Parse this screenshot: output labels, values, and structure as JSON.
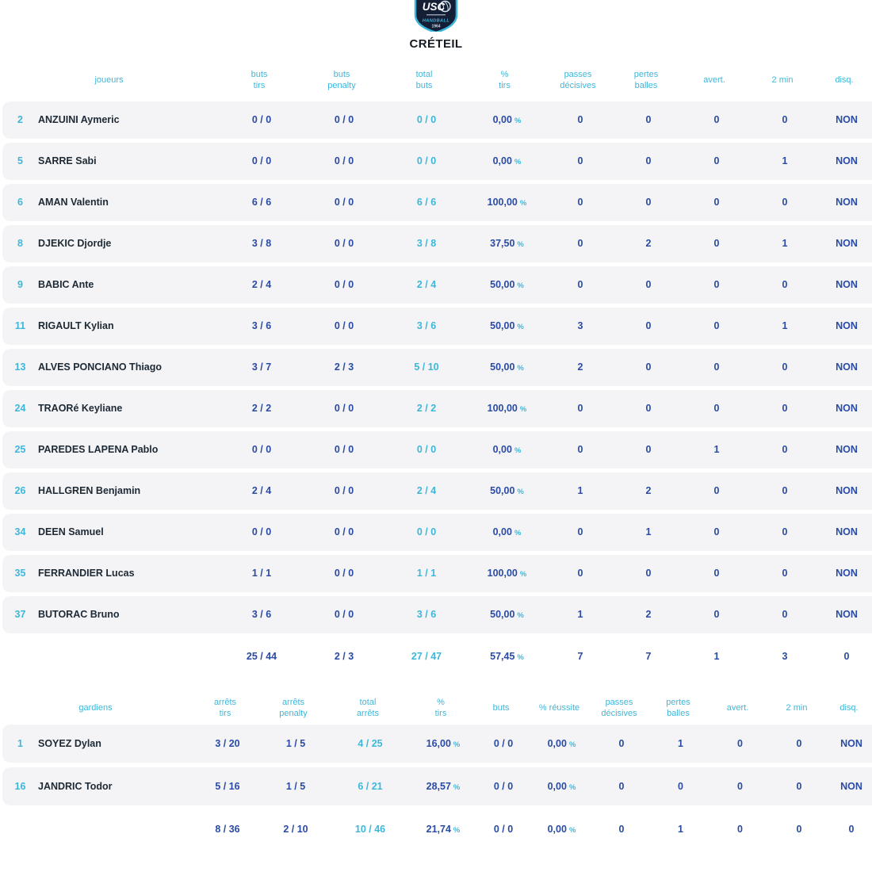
{
  "team": {
    "name": "CRÉTEIL",
    "logo": {
      "abbr": "USC",
      "sport": "HANDBALL",
      "year": "1964"
    }
  },
  "percent_sign": "%",
  "colors": {
    "accent_cyan": "#3db7d9",
    "value_blue": "#2a4ba4",
    "name_dark": "#1d2935",
    "row_bg": "#f4f4f6",
    "title_dark": "#161b22",
    "crest_navy": "#141f36"
  },
  "players_table": {
    "headers": [
      "joueurs",
      "buts\ntirs",
      "buts\npenalty",
      "total\nbuts",
      "%\ntirs",
      "passes\ndécisives",
      "pertes\nballes",
      "avert.",
      "2 min",
      "disq."
    ],
    "col_keys": [
      "buts_tirs",
      "buts_penalty",
      "total_buts",
      "pct_tirs",
      "passes_decisives",
      "pertes_balles",
      "avert",
      "two_min",
      "disq"
    ],
    "cyan_keys": [
      "total_buts"
    ],
    "rows": [
      {
        "num": "2",
        "name": "ANZUINI Aymeric",
        "buts_tirs": "0 / 0",
        "buts_penalty": "0 / 0",
        "total_buts": "0 / 0",
        "pct_tirs": "0,00",
        "passes_decisives": "0",
        "pertes_balles": "0",
        "avert": "0",
        "two_min": "0",
        "disq": "NON"
      },
      {
        "num": "5",
        "name": "SARRE Sabi",
        "buts_tirs": "0 / 0",
        "buts_penalty": "0 / 0",
        "total_buts": "0 / 0",
        "pct_tirs": "0,00",
        "passes_decisives": "0",
        "pertes_balles": "0",
        "avert": "0",
        "two_min": "1",
        "disq": "NON"
      },
      {
        "num": "6",
        "name": "AMAN Valentin",
        "buts_tirs": "6 / 6",
        "buts_penalty": "0 / 0",
        "total_buts": "6 / 6",
        "pct_tirs": "100,00",
        "passes_decisives": "0",
        "pertes_balles": "0",
        "avert": "0",
        "two_min": "0",
        "disq": "NON"
      },
      {
        "num": "8",
        "name": "DJEKIC Djordje",
        "buts_tirs": "3 / 8",
        "buts_penalty": "0 / 0",
        "total_buts": "3 / 8",
        "pct_tirs": "37,50",
        "passes_decisives": "0",
        "pertes_balles": "2",
        "avert": "0",
        "two_min": "1",
        "disq": "NON"
      },
      {
        "num": "9",
        "name": "BABIC Ante",
        "buts_tirs": "2 / 4",
        "buts_penalty": "0 / 0",
        "total_buts": "2 / 4",
        "pct_tirs": "50,00",
        "passes_decisives": "0",
        "pertes_balles": "0",
        "avert": "0",
        "two_min": "0",
        "disq": "NON"
      },
      {
        "num": "11",
        "name": "RIGAULT Kylian",
        "buts_tirs": "3 / 6",
        "buts_penalty": "0 / 0",
        "total_buts": "3 / 6",
        "pct_tirs": "50,00",
        "passes_decisives": "3",
        "pertes_balles": "0",
        "avert": "0",
        "two_min": "1",
        "disq": "NON"
      },
      {
        "num": "13",
        "name": "ALVES PONCIANO Thiago",
        "buts_tirs": "3 / 7",
        "buts_penalty": "2 / 3",
        "total_buts": "5 / 10",
        "pct_tirs": "50,00",
        "passes_decisives": "2",
        "pertes_balles": "0",
        "avert": "0",
        "two_min": "0",
        "disq": "NON"
      },
      {
        "num": "24",
        "name": "TRAORé Keyliane",
        "buts_tirs": "2 / 2",
        "buts_penalty": "0 / 0",
        "total_buts": "2 / 2",
        "pct_tirs": "100,00",
        "passes_decisives": "0",
        "pertes_balles": "0",
        "avert": "0",
        "two_min": "0",
        "disq": "NON"
      },
      {
        "num": "25",
        "name": "PAREDES LAPENA Pablo",
        "buts_tirs": "0 / 0",
        "buts_penalty": "0 / 0",
        "total_buts": "0 / 0",
        "pct_tirs": "0,00",
        "passes_decisives": "0",
        "pertes_balles": "0",
        "avert": "1",
        "two_min": "0",
        "disq": "NON"
      },
      {
        "num": "26",
        "name": "HALLGREN Benjamin",
        "buts_tirs": "2 / 4",
        "buts_penalty": "0 / 0",
        "total_buts": "2 / 4",
        "pct_tirs": "50,00",
        "passes_decisives": "1",
        "pertes_balles": "2",
        "avert": "0",
        "two_min": "0",
        "disq": "NON"
      },
      {
        "num": "34",
        "name": "DEEN Samuel",
        "buts_tirs": "0 / 0",
        "buts_penalty": "0 / 0",
        "total_buts": "0 / 0",
        "pct_tirs": "0,00",
        "passes_decisives": "0",
        "pertes_balles": "1",
        "avert": "0",
        "two_min": "0",
        "disq": "NON"
      },
      {
        "num": "35",
        "name": "FERRANDIER Lucas",
        "buts_tirs": "1 / 1",
        "buts_penalty": "0 / 0",
        "total_buts": "1 / 1",
        "pct_tirs": "100,00",
        "passes_decisives": "0",
        "pertes_balles": "0",
        "avert": "0",
        "two_min": "0",
        "disq": "NON"
      },
      {
        "num": "37",
        "name": "BUTORAC Bruno",
        "buts_tirs": "3 / 6",
        "buts_penalty": "0 / 0",
        "total_buts": "3 / 6",
        "pct_tirs": "50,00",
        "passes_decisives": "1",
        "pertes_balles": "2",
        "avert": "0",
        "two_min": "0",
        "disq": "NON"
      }
    ],
    "totals": {
      "buts_tirs": "25 / 44",
      "buts_penalty": "2 / 3",
      "total_buts": "27 / 47",
      "pct_tirs": "57,45",
      "passes_decisives": "7",
      "pertes_balles": "7",
      "avert": "1",
      "two_min": "3",
      "disq": "0"
    }
  },
  "keepers_table": {
    "headers": [
      "gardiens",
      "arrêts\ntirs",
      "arrêts\npenalty",
      "total\narrêts",
      "%\ntirs",
      "buts",
      "% réussite",
      "passes\ndécisives",
      "pertes\nballes",
      "avert.",
      "2 min",
      "disq."
    ],
    "col_keys": [
      "arrets_tirs",
      "arrets_penalty",
      "total_arrets",
      "pct_tirs",
      "buts",
      "pct_reussite",
      "passes_decisives",
      "pertes_balles",
      "avert",
      "two_min",
      "disq"
    ],
    "cyan_keys": [
      "total_arrets"
    ],
    "rows": [
      {
        "num": "1",
        "name": "SOYEZ Dylan",
        "arrets_tirs": "3 / 20",
        "arrets_penalty": "1 / 5",
        "total_arrets": "4 / 25",
        "pct_tirs": "16,00",
        "buts": "0 / 0",
        "pct_reussite": "0,00",
        "passes_decisives": "0",
        "pertes_balles": "1",
        "avert": "0",
        "two_min": "0",
        "disq": "NON"
      },
      {
        "num": "16",
        "name": "JANDRIC Todor",
        "arrets_tirs": "5 / 16",
        "arrets_penalty": "1 / 5",
        "total_arrets": "6 / 21",
        "pct_tirs": "28,57",
        "buts": "0 / 0",
        "pct_reussite": "0,00",
        "passes_decisives": "0",
        "pertes_balles": "0",
        "avert": "0",
        "two_min": "0",
        "disq": "NON"
      }
    ],
    "totals": {
      "arrets_tirs": "8 / 36",
      "arrets_penalty": "2 / 10",
      "total_arrets": "10 / 46",
      "pct_tirs": "21,74",
      "buts": "0 / 0",
      "pct_reussite": "0,00",
      "passes_decisives": "0",
      "pertes_balles": "1",
      "avert": "0",
      "two_min": "0",
      "disq": "0"
    }
  }
}
